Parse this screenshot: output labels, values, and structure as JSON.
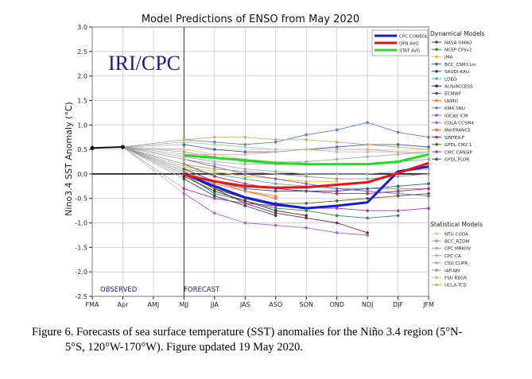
{
  "chart_data": {
    "type": "line",
    "title": "Model Predictions of ENSO from May 2020",
    "ylabel": "Nino3.4 SST Anomaly (°C)",
    "xlabel": "",
    "watermark": "IRI/CPC",
    "observed_label": "OBSERVED",
    "forecast_label": "FORECAST",
    "categories": [
      "FMA",
      "Apr",
      "AMJ",
      "MJJ",
      "JJA",
      "JAS",
      "ASO",
      "SON",
      "OND",
      "NDJ",
      "DJF",
      "JFM"
    ],
    "yticks": [
      "3.0",
      "2.5",
      "2.0",
      "1.5",
      "1.0",
      "0.5",
      "0.0",
      "-0.5",
      "-1.0",
      "-1.5",
      "-2.0",
      "-2.5"
    ],
    "ylim": [
      -2.5,
      3.0
    ],
    "grid": true,
    "legend_position": "right",
    "observed": {
      "x": [
        "FMA",
        "Apr"
      ],
      "values": [
        0.53,
        0.55
      ]
    },
    "averages": [
      {
        "name": "CPC CONSOL",
        "color": "#1a1adc",
        "values": [
          null,
          null,
          null,
          0.0,
          -0.25,
          -0.48,
          -0.62,
          -0.7,
          -0.65,
          -0.58,
          0.05,
          0.15
        ]
      },
      {
        "name": "DYN AVG",
        "color": "#ee1111",
        "values": [
          null,
          null,
          null,
          -0.02,
          -0.15,
          -0.25,
          -0.28,
          -0.27,
          -0.22,
          -0.17,
          0.02,
          0.22
        ]
      },
      {
        "name": "STAT AVG",
        "color": "#22dd22",
        "values": [
          null,
          null,
          null,
          0.38,
          0.33,
          0.28,
          0.22,
          0.2,
          0.2,
          0.2,
          0.25,
          0.4
        ]
      }
    ],
    "dynamical_models_title": "Dynamical Models",
    "dynamical_models": [
      {
        "name": "NASA GMAO",
        "color": "#8b2252",
        "values": [
          null,
          null,
          null,
          0.05,
          -0.3,
          -0.6,
          -0.8,
          -0.9,
          -1.0,
          -1.2,
          null,
          null
        ]
      },
      {
        "name": "NCEP CFSv2",
        "color": "#2e8b57",
        "values": [
          null,
          null,
          null,
          0.0,
          -0.4,
          -0.55,
          -0.7,
          -0.75,
          -0.85,
          -0.9,
          -0.85,
          null
        ]
      },
      {
        "name": "JMA",
        "color": "#e8c020",
        "values": [
          null,
          null,
          null,
          0.15,
          0.05,
          -0.05,
          -0.1,
          -0.15,
          -0.15,
          null,
          null,
          null
        ]
      },
      {
        "name": "BCC_CSM11m",
        "color": "#4060c0",
        "values": [
          null,
          null,
          null,
          0.6,
          0.5,
          0.45,
          0.45,
          0.5,
          0.55,
          0.6,
          0.6,
          0.55
        ]
      },
      {
        "name": "SAUDI-KAU",
        "color": "#334455",
        "values": [
          null,
          null,
          null,
          -0.1,
          -0.45,
          -0.65,
          -0.85,
          null,
          null,
          null,
          null,
          null
        ]
      },
      {
        "name": "LDEO",
        "color": "#40c0a0",
        "values": [
          null,
          null,
          null,
          0.1,
          0.0,
          -0.1,
          -0.2,
          -0.25,
          -0.3,
          -0.3,
          -0.3,
          -0.3
        ]
      },
      {
        "name": "AUS/ACCESS",
        "color": "#303030",
        "values": [
          null,
          null,
          null,
          -0.05,
          -0.35,
          -0.55,
          -0.75,
          -0.85,
          null,
          null,
          null,
          null
        ]
      },
      {
        "name": "ECMWF",
        "color": "#2255cc",
        "values": [
          null,
          null,
          null,
          0.0,
          -0.3,
          -0.5,
          -0.65,
          null,
          null,
          null,
          null,
          null
        ]
      },
      {
        "name": "UKMO",
        "color": "#ff8030",
        "values": [
          null,
          null,
          null,
          0.05,
          -0.2,
          -0.35,
          -0.45,
          null,
          null,
          null,
          null,
          null
        ]
      },
      {
        "name": "KMA SNU",
        "color": "#6080c0",
        "values": [
          null,
          null,
          null,
          0.7,
          0.65,
          0.6,
          0.65,
          0.8,
          0.9,
          1.05,
          0.85,
          0.75
        ]
      },
      {
        "name": "IOCAS ICM",
        "color": "#8060c0",
        "values": [
          null,
          null,
          null,
          0.3,
          0.15,
          0.0,
          -0.1,
          -0.2,
          -0.3,
          -0.35,
          -0.4,
          -0.45
        ]
      },
      {
        "name": "COLA CCSM4",
        "color": "#b060d0",
        "values": [
          null,
          null,
          null,
          -0.4,
          -0.8,
          -1.0,
          -1.05,
          -1.1,
          -1.2,
          -1.25,
          null,
          null
        ]
      },
      {
        "name": "MetFRANCE",
        "color": "#ff6633",
        "values": [
          null,
          null,
          null,
          0.1,
          -0.15,
          -0.35,
          -0.5,
          null,
          null,
          null,
          null,
          null
        ]
      },
      {
        "name": "SINTEX-F",
        "color": "#cc2255",
        "values": [
          null,
          null,
          null,
          0.2,
          -0.05,
          -0.2,
          -0.3,
          -0.35,
          -0.4,
          -0.4,
          -0.35,
          -0.3
        ]
      },
      {
        "name": "GFDL CM2.1",
        "color": "#446622",
        "values": [
          null,
          null,
          null,
          0.0,
          -0.3,
          -0.5,
          -0.6,
          -0.6,
          -0.55,
          -0.5,
          -0.45,
          -0.4
        ]
      },
      {
        "name": "CMC CANSIP",
        "color": "#aa33aa",
        "values": [
          null,
          null,
          null,
          -0.3,
          -0.5,
          -0.6,
          -0.65,
          -0.7,
          -0.7,
          -0.75,
          -0.75,
          -0.7
        ]
      },
      {
        "name": "GFDL FLOR",
        "color": "#3355aa",
        "values": [
          null,
          null,
          null,
          0.1,
          -0.15,
          -0.3,
          -0.35,
          -0.35,
          -0.35,
          -0.3,
          -0.25,
          -0.2
        ]
      }
    ],
    "statistical_models_title": "Statistical Models",
    "statistical_models": [
      {
        "name": "NTU CODA",
        "color": "#e0d080",
        "values": [
          null,
          null,
          null,
          0.5,
          0.4,
          0.3,
          0.25,
          0.25,
          0.3,
          0.35,
          0.4,
          0.45
        ]
      },
      {
        "name": "BCC_RZDM",
        "color": "#98a0a0",
        "values": [
          null,
          null,
          null,
          0.45,
          0.35,
          0.25,
          0.2,
          0.2,
          0.2,
          0.2,
          0.25,
          0.3
        ]
      },
      {
        "name": "CPC MRKOV",
        "color": "#a0a8a8",
        "values": [
          null,
          null,
          null,
          0.3,
          0.2,
          0.1,
          0.05,
          0.0,
          0.0,
          0.0,
          0.05,
          0.1
        ]
      },
      {
        "name": "CPC CA",
        "color": "#f0a0a0",
        "values": [
          null,
          null,
          null,
          0.4,
          0.4,
          0.4,
          0.45,
          0.5,
          0.5,
          0.5,
          0.45,
          0.4
        ]
      },
      {
        "name": "CSU CLIPR",
        "color": "#a8b0b8",
        "values": [
          null,
          null,
          null,
          0.35,
          0.25,
          0.2,
          0.2,
          0.25,
          0.3,
          0.35,
          0.4,
          0.45
        ]
      },
      {
        "name": "IAP-NN",
        "color": "#909898",
        "values": [
          null,
          null,
          null,
          0.2,
          0.1,
          0.05,
          0.0,
          -0.05,
          -0.1,
          -0.1,
          -0.05,
          0.0
        ]
      },
      {
        "name": "FSU REGR",
        "color": "#a0d0a0",
        "values": [
          null,
          null,
          null,
          0.65,
          0.6,
          0.55,
          0.5,
          0.5,
          0.45,
          0.45,
          0.45,
          0.45
        ]
      },
      {
        "name": "UCLA-TCD",
        "color": "#c8b060",
        "values": [
          null,
          null,
          null,
          0.7,
          0.75,
          0.75,
          0.7,
          0.7,
          0.65,
          0.6,
          0.55,
          0.5
        ]
      }
    ]
  },
  "caption": {
    "line1": "Figure 6. Forecasts of sea surface temperature (SST) anomalies for the Niño 3.4 region (5°N-",
    "line2": "5°S, 120°W-170°W). Figure updated 19 May 2020."
  }
}
